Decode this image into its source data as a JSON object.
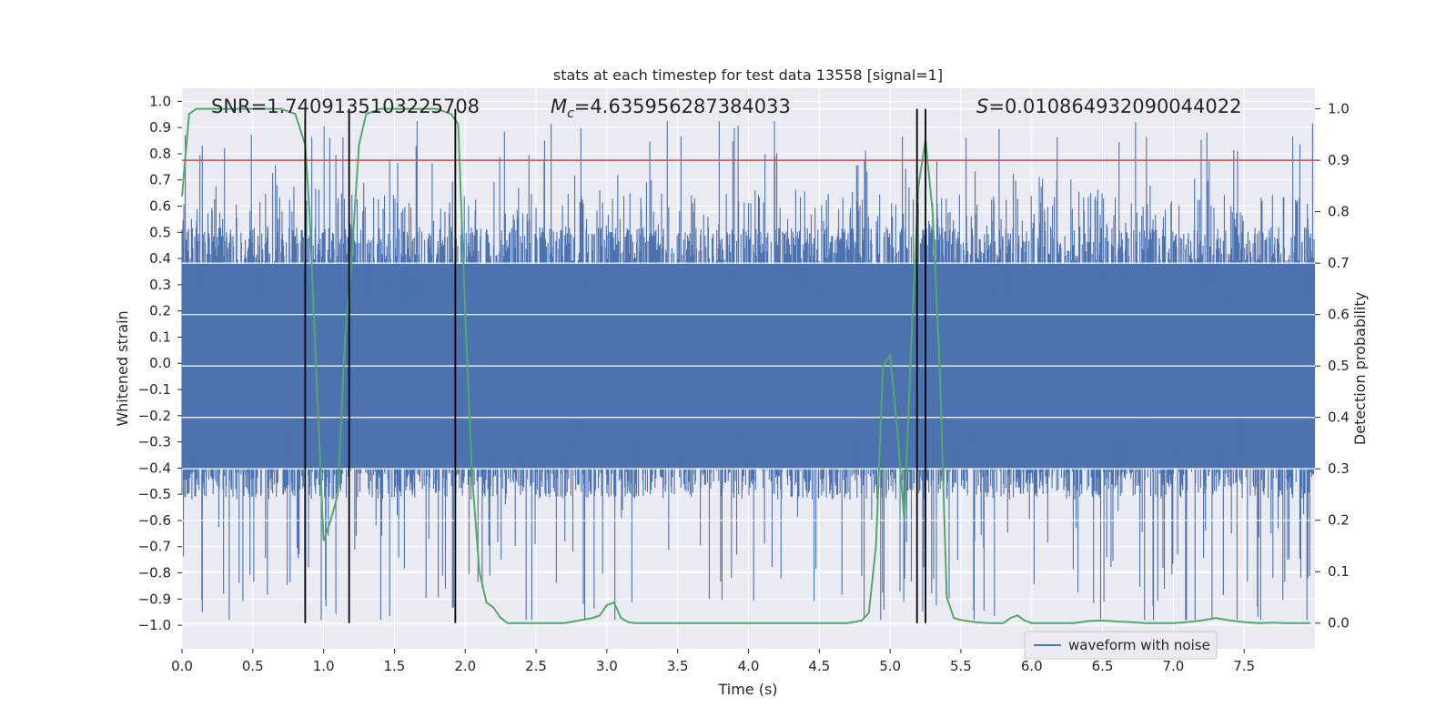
{
  "chart_data": {
    "type": "line",
    "title": "stats at each timestep for test data 13558 [signal=1]",
    "xlabel": "Time (s)",
    "ylabel": "Whitened strain",
    "y2label": "Detection probability",
    "xlim": [
      0.0,
      8.0
    ],
    "ylim": [
      -1.09,
      1.05
    ],
    "y2lim": [
      -0.05,
      1.04
    ],
    "grid": true,
    "xticks": [
      "0.0",
      "0.5",
      "1.0",
      "1.5",
      "2.0",
      "2.5",
      "3.0",
      "3.5",
      "4.0",
      "4.5",
      "5.0",
      "5.5",
      "6.0",
      "6.5",
      "7.0",
      "7.5"
    ],
    "yticks": [
      "1.0",
      "0.9",
      "0.8",
      "0.7",
      "0.6",
      "0.5",
      "0.4",
      "0.3",
      "0.2",
      "0.1",
      "0.0",
      "-0.1",
      "-0.2",
      "-0.3",
      "-0.4",
      "-0.5",
      "-0.6",
      "-0.7",
      "-0.8",
      "-0.9",
      "-1.0"
    ],
    "y2ticks": [
      "1.0",
      "0.9",
      "0.8",
      "0.7",
      "0.6",
      "0.5",
      "0.4",
      "0.3",
      "0.2",
      "0.1",
      "0.0"
    ],
    "annotations": {
      "snr": "SNR=1.7409135103225708",
      "mc_symbol": "M",
      "mc_sub": "c",
      "mc_value": "=4.635956287384033",
      "s_symbol": "S",
      "s_value": "=0.010864932090044022"
    },
    "threshold": 0.9,
    "vlines": [
      0.87,
      1.18,
      1.93,
      5.19,
      5.25
    ],
    "legend": {
      "label": "waveform with noise",
      "location": "lower right"
    },
    "series": [
      {
        "name": "waveform with noise",
        "axis": "left",
        "color": "#4c72b0",
        "description": "dense whitened strain noise, typical envelope about +/-0.5 with spikes to about +/-0.95"
      },
      {
        "name": "detection probability",
        "axis": "right",
        "color": "#55a868",
        "x": [
          0.0,
          0.05,
          0.1,
          0.15,
          0.2,
          0.3,
          0.4,
          0.5,
          0.6,
          0.7,
          0.8,
          0.87,
          0.9,
          0.95,
          1.0,
          1.05,
          1.1,
          1.15,
          1.2,
          1.25,
          1.3,
          1.4,
          1.5,
          1.6,
          1.7,
          1.8,
          1.9,
          1.95,
          2.0,
          2.05,
          2.1,
          2.15,
          2.2,
          2.25,
          2.3,
          2.4,
          2.5,
          2.6,
          2.7,
          2.8,
          2.9,
          2.95,
          3.0,
          3.05,
          3.1,
          3.15,
          3.2,
          3.3,
          3.4,
          3.5,
          3.6,
          3.7,
          3.8,
          3.9,
          4.0,
          4.1,
          4.2,
          4.3,
          4.4,
          4.5,
          4.6,
          4.7,
          4.8,
          4.85,
          4.9,
          4.95,
          5.0,
          5.05,
          5.1,
          5.15,
          5.2,
          5.25,
          5.3,
          5.35,
          5.4,
          5.45,
          5.5,
          5.6,
          5.7,
          5.8,
          5.85,
          5.9,
          5.95,
          6.0,
          6.1,
          6.2,
          6.3,
          6.4,
          6.5,
          6.6,
          6.7,
          6.8,
          6.9,
          7.0,
          7.1,
          7.2,
          7.3,
          7.4,
          7.5,
          7.6,
          7.7,
          7.8,
          7.9,
          7.97
        ],
        "values": [
          0.83,
          0.99,
          1.0,
          1.0,
          1.0,
          1.0,
          1.0,
          1.0,
          1.0,
          1.0,
          0.99,
          0.93,
          0.8,
          0.48,
          0.16,
          0.2,
          0.25,
          0.55,
          0.72,
          0.93,
          0.99,
          1.0,
          1.0,
          1.0,
          1.0,
          1.0,
          0.99,
          0.97,
          0.6,
          0.28,
          0.1,
          0.04,
          0.03,
          0.01,
          0.0,
          0.0,
          0.0,
          0.0,
          0.0,
          0.005,
          0.01,
          0.015,
          0.035,
          0.04,
          0.01,
          0.002,
          0.0,
          0.0,
          0.0,
          0.0,
          0.0,
          0.0,
          0.0,
          0.0,
          0.0,
          0.0,
          0.0,
          0.0,
          0.0,
          0.0,
          0.0,
          0.0,
          0.005,
          0.02,
          0.15,
          0.5,
          0.52,
          0.38,
          0.2,
          0.55,
          0.85,
          0.94,
          0.8,
          0.5,
          0.05,
          0.01,
          0.006,
          0.002,
          0.0,
          0.0,
          0.01,
          0.015,
          0.005,
          0.0,
          0.0,
          0.0,
          0.0,
          0.004,
          0.005,
          0.003,
          0.002,
          0.0,
          0.0,
          0.0,
          0.002,
          0.005,
          0.01,
          0.005,
          0.002,
          0.0,
          0.001,
          0.0,
          0.0,
          0.0
        ]
      }
    ]
  }
}
